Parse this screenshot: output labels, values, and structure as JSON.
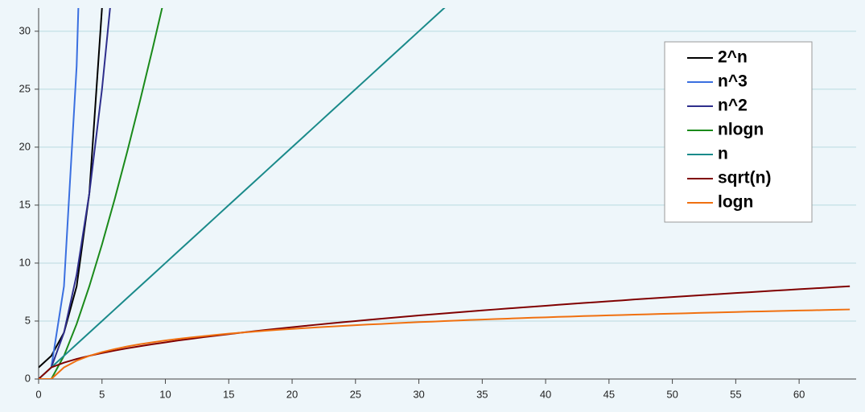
{
  "chart_data": {
    "type": "line",
    "x": [
      0,
      1,
      2,
      3,
      4,
      5,
      6,
      7,
      8,
      9,
      10,
      11,
      12,
      13,
      14,
      15,
      16,
      17,
      18,
      19,
      20,
      21,
      22,
      23,
      24,
      25,
      26,
      27,
      28,
      29,
      30,
      31,
      32,
      33,
      34,
      35,
      36,
      37,
      38,
      39,
      40,
      41,
      42,
      43,
      44,
      45,
      46,
      47,
      48,
      49,
      50,
      51,
      52,
      53,
      54,
      55,
      56,
      57,
      58,
      59,
      60,
      61,
      62,
      63,
      64
    ],
    "xlim": [
      0,
      64.5
    ],
    "ylim": [
      0,
      32
    ],
    "xticks": [
      0,
      5,
      10,
      15,
      20,
      25,
      30,
      35,
      40,
      45,
      50,
      55,
      60
    ],
    "yticks": [
      0,
      5,
      10,
      15,
      20,
      25,
      30
    ],
    "grid": true,
    "legend": "upper right",
    "series": [
      {
        "name": "2^n",
        "color": "#000000",
        "values": [
          1,
          2,
          4,
          8,
          16,
          32,
          64,
          null,
          null,
          null,
          null,
          null,
          null,
          null,
          null,
          null,
          null,
          null,
          null,
          null,
          null,
          null,
          null,
          null,
          null,
          null,
          null,
          null,
          null,
          null,
          null,
          null,
          null,
          null,
          null,
          null,
          null,
          null,
          null,
          null,
          null,
          null,
          null,
          null,
          null,
          null,
          null,
          null,
          null,
          null,
          null,
          null,
          null,
          null,
          null,
          null,
          null,
          null,
          null,
          null,
          null,
          null,
          null,
          null,
          null
        ]
      },
      {
        "name": "n^3",
        "color": "#3a6fe0",
        "values": [
          null,
          1,
          8,
          27,
          64,
          null,
          null,
          null,
          null,
          null,
          null,
          null,
          null,
          null,
          null,
          null,
          null,
          null,
          null,
          null,
          null,
          null,
          null,
          null,
          null,
          null,
          null,
          null,
          null,
          null,
          null,
          null,
          null,
          null,
          null,
          null,
          null,
          null,
          null,
          null,
          null,
          null,
          null,
          null,
          null,
          null,
          null,
          null,
          null,
          null,
          null,
          null,
          null,
          null,
          null,
          null,
          null,
          null,
          null,
          null,
          null,
          null,
          null,
          null,
          null
        ]
      },
      {
        "name": "n^2",
        "color": "#2e2e8c",
        "values": [
          null,
          1,
          4,
          9,
          16,
          25,
          36,
          null,
          null,
          null,
          null,
          null,
          null,
          null,
          null,
          null,
          null,
          null,
          null,
          null,
          null,
          null,
          null,
          null,
          null,
          null,
          null,
          null,
          null,
          null,
          null,
          null,
          null,
          null,
          null,
          null,
          null,
          null,
          null,
          null,
          null,
          null,
          null,
          null,
          null,
          null,
          null,
          null,
          null,
          null,
          null,
          null,
          null,
          null,
          null,
          null,
          null,
          null,
          null,
          null,
          null,
          null,
          null,
          null,
          null
        ]
      },
      {
        "name": "nlogn",
        "color": "#1a8a1a",
        "values": [
          0,
          0,
          2,
          4.75,
          8,
          11.61,
          15.51,
          19.65,
          24,
          28.53,
          33.22,
          null,
          null,
          null,
          null,
          null,
          null,
          null,
          null,
          null,
          null,
          null,
          null,
          null,
          null,
          null,
          null,
          null,
          null,
          null,
          null,
          null,
          null,
          null,
          null,
          null,
          null,
          null,
          null,
          null,
          null,
          null,
          null,
          null,
          null,
          null,
          null,
          null,
          null,
          null,
          null,
          null,
          null,
          null,
          null,
          null,
          null,
          null,
          null,
          null,
          null,
          null,
          null,
          null,
          null
        ]
      },
      {
        "name": "n",
        "color": "#1a8a8a",
        "values": [
          0,
          1,
          2,
          3,
          4,
          5,
          6,
          7,
          8,
          9,
          10,
          11,
          12,
          13,
          14,
          15,
          16,
          17,
          18,
          19,
          20,
          21,
          22,
          23,
          24,
          25,
          26,
          27,
          28,
          29,
          30,
          31,
          32,
          33,
          null,
          null,
          null,
          null,
          null,
          null,
          null,
          null,
          null,
          null,
          null,
          null,
          null,
          null,
          null,
          null,
          null,
          null,
          null,
          null,
          null,
          null,
          null,
          null,
          null,
          null,
          null,
          null,
          null,
          null,
          null
        ]
      },
      {
        "name": "sqrt(n)",
        "color": "#800000",
        "values": [
          0,
          1,
          1.41,
          1.73,
          2,
          2.24,
          2.45,
          2.65,
          2.83,
          3,
          3.16,
          3.32,
          3.46,
          3.61,
          3.74,
          3.87,
          4,
          4.12,
          4.24,
          4.36,
          4.47,
          4.58,
          4.69,
          4.8,
          4.9,
          5,
          5.1,
          5.2,
          5.29,
          5.39,
          5.48,
          5.57,
          5.66,
          5.74,
          5.83,
          5.92,
          6,
          6.08,
          6.16,
          6.24,
          6.32,
          6.4,
          6.48,
          6.56,
          6.63,
          6.71,
          6.78,
          6.86,
          6.93,
          7,
          7.07,
          7.14,
          7.21,
          7.28,
          7.35,
          7.42,
          7.48,
          7.55,
          7.62,
          7.68,
          7.75,
          7.81,
          7.87,
          7.94,
          8
        ]
      },
      {
        "name": "logn",
        "color": "#f07010",
        "values": [
          0,
          0,
          1,
          1.58,
          2,
          2.32,
          2.58,
          2.81,
          3,
          3.17,
          3.32,
          3.46,
          3.58,
          3.7,
          3.81,
          3.91,
          4,
          4.09,
          4.17,
          4.25,
          4.32,
          4.39,
          4.46,
          4.52,
          4.58,
          4.64,
          4.7,
          4.75,
          4.81,
          4.86,
          4.91,
          4.95,
          5,
          5.04,
          5.09,
          5.13,
          5.17,
          5.21,
          5.25,
          5.29,
          5.32,
          5.36,
          5.39,
          5.43,
          5.46,
          5.49,
          5.52,
          5.55,
          5.58,
          5.61,
          5.64,
          5.67,
          5.7,
          5.73,
          5.75,
          5.78,
          5.81,
          5.83,
          5.86,
          5.88,
          5.91,
          5.93,
          5.95,
          5.98,
          6
        ]
      }
    ]
  }
}
